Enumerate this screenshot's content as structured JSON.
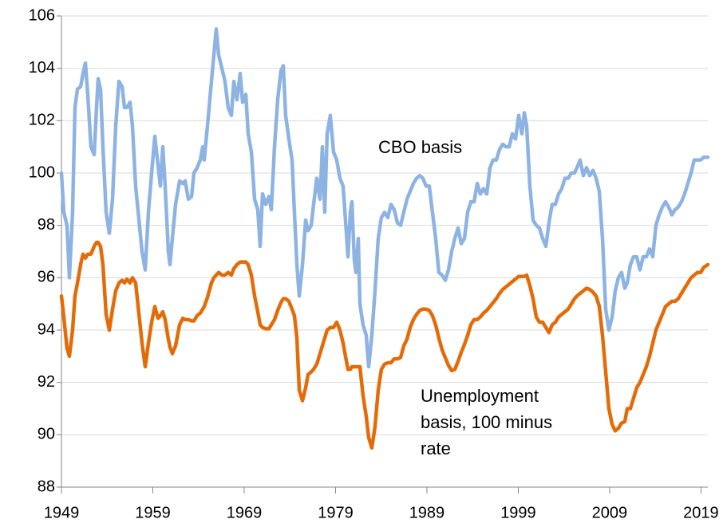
{
  "chart_data": {
    "type": "line",
    "x": [
      1949.0,
      1949.26,
      1949.61,
      1949.87,
      1950.22,
      1950.48,
      1950.75,
      1951.1,
      1951.36,
      1951.62,
      1951.88,
      1952.23,
      1952.58,
      1952.84,
      1953.02,
      1953.28,
      1953.54,
      1953.89,
      1954.24,
      1954.59,
      1954.94,
      1955.29,
      1955.64,
      1955.9,
      1956.16,
      1956.51,
      1956.77,
      1957.12,
      1957.82,
      1958.17,
      1958.52,
      1958.87,
      1959.22,
      1959.57,
      1959.83,
      1960.09,
      1960.35,
      1960.7,
      1960.88,
      1961.14,
      1961.49,
      1961.93,
      1962.28,
      1962.54,
      1962.89,
      1963.24,
      1963.5,
      1963.85,
      1964.2,
      1964.46,
      1964.63,
      1964.98,
      1965.42,
      1965.68,
      1965.94,
      1966.21,
      1966.56,
      1966.9,
      1967.25,
      1967.6,
      1967.87,
      1968.21,
      1968.56,
      1968.83,
      1969.18,
      1969.44,
      1969.79,
      1970.14,
      1970.49,
      1970.75,
      1971.01,
      1971.36,
      1971.71,
      1971.97,
      1972.32,
      1972.67,
      1973.02,
      1973.28,
      1973.54,
      1973.89,
      1974.24,
      1974.5,
      1974.77,
      1975.03,
      1975.38,
      1975.73,
      1975.99,
      1976.34,
      1976.6,
      1976.95,
      1977.3,
      1977.56,
      1977.82,
      1978.08,
      1978.43,
      1978.78,
      1979.13,
      1979.48,
      1979.83,
      1980.09,
      1980.36,
      1980.62,
      1980.79,
      1981.05,
      1981.23,
      1981.49,
      1981.67,
      1982.01,
      1982.36,
      1982.63,
      1982.97,
      1983.32,
      1983.67,
      1984.02,
      1984.37,
      1984.72,
      1985.07,
      1985.42,
      1985.77,
      1986.12,
      1986.47,
      1986.82,
      1987.17,
      1987.52,
      1987.87,
      1988.22,
      1988.56,
      1988.91,
      1989.26,
      1989.61,
      1989.96,
      1990.31,
      1990.66,
      1991.01,
      1991.36,
      1991.71,
      1992.06,
      1992.41,
      1992.76,
      1993.11,
      1993.46,
      1993.81,
      1994.16,
      1994.51,
      1994.85,
      1995.2,
      1995.55,
      1995.9,
      1996.25,
      1996.6,
      1996.95,
      1997.3,
      1997.65,
      1998.0,
      1998.35,
      1998.7,
      1999.05,
      1999.4,
      1999.66,
      1999.92,
      2000.27,
      2000.62,
      2000.97,
      2001.32,
      2001.67,
      2002.02,
      2002.36,
      2002.71,
      2003.06,
      2003.41,
      2003.76,
      2004.11,
      2004.46,
      2004.81,
      2005.16,
      2005.42,
      2005.77,
      2006.12,
      2006.47,
      2006.82,
      2007.17,
      2007.52,
      2007.87,
      2008.22,
      2008.57,
      2008.92,
      2009.27,
      2009.61,
      2009.96,
      2010.31,
      2010.66,
      2010.93,
      2011.27,
      2011.62,
      2011.97,
      2012.32,
      2012.67,
      2013.02,
      2013.37,
      2013.72,
      2014.07,
      2014.42,
      2014.77,
      2015.12,
      2015.47,
      2015.82,
      2016.17,
      2016.51,
      2016.86,
      2017.21,
      2017.56,
      2017.91,
      2018.26,
      2018.61,
      2018.96,
      2019.31,
      2019.75
    ],
    "series": [
      {
        "name": "CBO basis",
        "color": "#8db3e2",
        "values": [
          100,
          98.5,
          98,
          96,
          98.5,
          102.5,
          103.2,
          103.3,
          103.8,
          104.2,
          103,
          101,
          100.7,
          102.5,
          103.6,
          103.2,
          101,
          98.5,
          97.7,
          99,
          101.8,
          103.5,
          103.3,
          102.5,
          102.5,
          102.7,
          101.8,
          99.5,
          97,
          96.3,
          98.5,
          100,
          101.4,
          100.3,
          99.5,
          101,
          99.5,
          97,
          96.5,
          97.5,
          98.8,
          99.7,
          99.6,
          99.7,
          99,
          99.1,
          100,
          100.2,
          100.5,
          101,
          100.5,
          101.8,
          103.5,
          104.5,
          105.5,
          104.5,
          104,
          103.5,
          102.5,
          102.2,
          103.5,
          102.8,
          103.8,
          102.7,
          103,
          101.5,
          100.8,
          99,
          98.6,
          97.2,
          99.2,
          98.8,
          99.1,
          98.6,
          101,
          102.8,
          103.9,
          104.1,
          102.2,
          101.3,
          100.5,
          98.5,
          96.5,
          95.3,
          96.5,
          98.2,
          97.8,
          98,
          98.8,
          99.8,
          99,
          101,
          98.5,
          101.5,
          102.2,
          100.8,
          100.5,
          99.8,
          99.5,
          98.2,
          96.8,
          98.5,
          98.9,
          96.7,
          96.2,
          97.5,
          95,
          94.2,
          93.8,
          92.6,
          93.8,
          95.5,
          97.5,
          98.3,
          98.5,
          98.3,
          98.8,
          98.6,
          98.1,
          98,
          98.5,
          99,
          99.3,
          99.6,
          99.8,
          99.9,
          99.8,
          99.5,
          99.5,
          98.5,
          97.5,
          96.2,
          96.1,
          95.9,
          96.3,
          97,
          97.5,
          97.9,
          97.3,
          97.5,
          98.5,
          98.9,
          98.9,
          99.6,
          99.2,
          99.4,
          99.2,
          100.2,
          100.5,
          100.5,
          100.9,
          101.1,
          101,
          101,
          101.5,
          101.3,
          102.2,
          101.5,
          102.3,
          101.8,
          99.5,
          98.2,
          98,
          97.9,
          97.5,
          97.2,
          98.1,
          98.8,
          98.8,
          99.2,
          99.4,
          99.8,
          99.8,
          100,
          100,
          100.2,
          100.5,
          99.9,
          100.2,
          99.9,
          100.1,
          99.8,
          99.3,
          97.5,
          94.8,
          94,
          94.5,
          95.5,
          96,
          96.2,
          95.6,
          95.8,
          96.5,
          96.8,
          96.8,
          96.3,
          96.8,
          96.8,
          97.1,
          96.8,
          98,
          98.4,
          98.7,
          98.9,
          98.7,
          98.4,
          98.6,
          98.7,
          98.9,
          99.2,
          99.6,
          100,
          100.5,
          100.5,
          100.5,
          100.6,
          100.6
        ]
      },
      {
        "name": "Unemployment basis, 100 minus rate",
        "color": "#e36c09",
        "values": [
          95.3,
          94.5,
          93.3,
          93,
          94,
          95.3,
          95.8,
          96.5,
          96.9,
          96.75,
          96.9,
          96.9,
          97.2,
          97.35,
          97.35,
          97.2,
          96.5,
          94.6,
          94,
          94.8,
          95.5,
          95.8,
          95.9,
          95.8,
          95.95,
          95.8,
          96,
          95.8,
          93.5,
          92.6,
          93.5,
          94.3,
          94.9,
          94.45,
          94.55,
          94.7,
          94.4,
          93.65,
          93.35,
          93.1,
          93.4,
          94.2,
          94.45,
          94.4,
          94.4,
          94.35,
          94.35,
          94.55,
          94.65,
          94.8,
          94.9,
          95.25,
          95.8,
          96,
          96.1,
          96.2,
          96.1,
          96.1,
          96.2,
          96.1,
          96.35,
          96.5,
          96.6,
          96.6,
          96.6,
          96.5,
          96.1,
          95.3,
          94.7,
          94.2,
          94.1,
          94.05,
          94.05,
          94.2,
          94.4,
          94.75,
          95.05,
          95.2,
          95.2,
          95.1,
          94.8,
          94.55,
          93.7,
          91.7,
          91.3,
          91.8,
          92.3,
          92.4,
          92.5,
          92.7,
          93.1,
          93.4,
          93.7,
          94,
          94.1,
          94.1,
          94.3,
          94,
          93.5,
          93,
          92.5,
          92.5,
          92.6,
          92.6,
          92.6,
          92.6,
          92.6,
          91.5,
          90.7,
          89.9,
          89.5,
          90.3,
          91.7,
          92.5,
          92.7,
          92.75,
          92.75,
          92.9,
          92.9,
          92.95,
          93.4,
          93.65,
          94.1,
          94.4,
          94.6,
          94.75,
          94.8,
          94.8,
          94.75,
          94.55,
          94.2,
          93.7,
          93.25,
          92.95,
          92.65,
          92.45,
          92.5,
          92.8,
          93.15,
          93.45,
          93.8,
          94.2,
          94.4,
          94.4,
          94.5,
          94.65,
          94.75,
          94.9,
          95.05,
          95.2,
          95.4,
          95.55,
          95.65,
          95.75,
          95.85,
          95.95,
          96.05,
          96.05,
          96.05,
          96.1,
          95.7,
          95.2,
          94.5,
          94.3,
          94.3,
          94.1,
          93.9,
          94.2,
          94.3,
          94.5,
          94.6,
          94.7,
          94.8,
          95,
          95.2,
          95.3,
          95.4,
          95.5,
          95.6,
          95.55,
          95.45,
          95.3,
          94.9,
          93.8,
          92.4,
          91,
          90.4,
          90.15,
          90.25,
          90.45,
          90.5,
          91,
          91,
          91.4,
          91.8,
          92,
          92.3,
          92.6,
          93,
          93.5,
          94,
          94.3,
          94.6,
          94.9,
          95,
          95.1,
          95.1,
          95.2,
          95.4,
          95.6,
          95.8,
          96,
          96.1,
          96.2,
          96.2,
          96.4,
          96.5
        ]
      }
    ],
    "xlim": [
      1949,
      2019.75
    ],
    "xticks": [
      1949,
      1959,
      1969,
      1979,
      1989,
      1999,
      2009,
      2019
    ],
    "ylim": [
      88,
      106
    ],
    "yticks": [
      88,
      90,
      92,
      94,
      96,
      98,
      100,
      102,
      104,
      106
    ],
    "grid": true
  }
}
